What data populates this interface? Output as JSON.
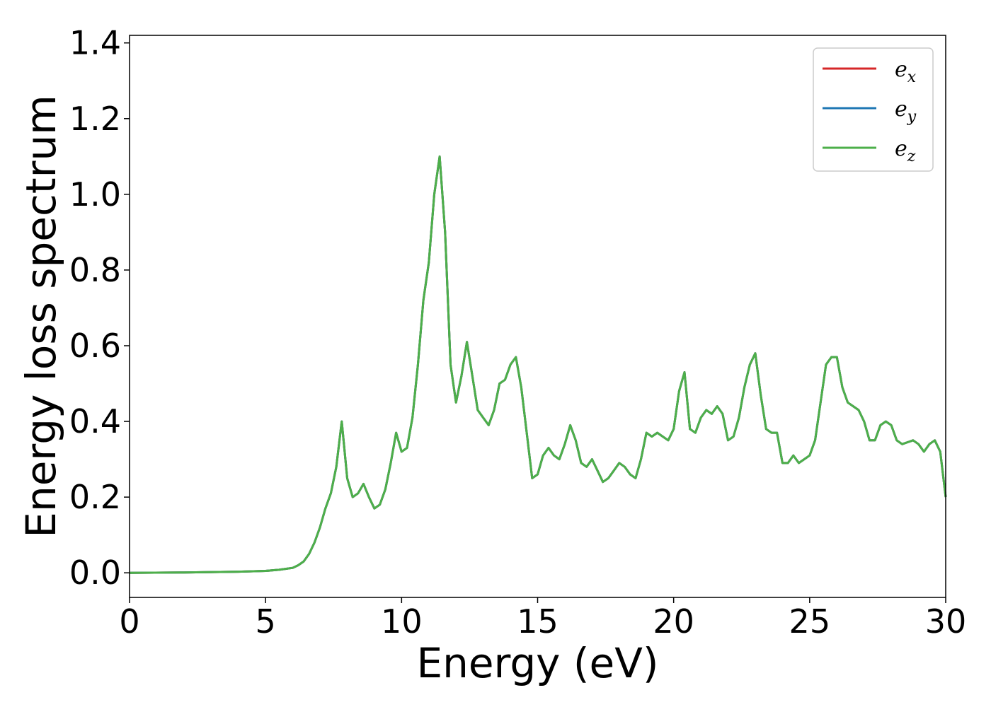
{
  "chart_data": {
    "type": "line",
    "title": "",
    "xlabel": "Energy (eV)",
    "ylabel": "Energy loss spectrum",
    "xlim": [
      0,
      30
    ],
    "ylim": [
      -0.065,
      1.42
    ],
    "xticks": [
      "0",
      "5",
      "10",
      "15",
      "20",
      "25",
      "30"
    ],
    "yticks": [
      "0.0",
      "0.2",
      "0.4",
      "0.6",
      "0.8",
      "1.0",
      "1.2",
      "1.4"
    ],
    "grid": false,
    "legend_position": "top-right",
    "series": [
      {
        "name": "e",
        "subscript": "x",
        "color": "#d62728"
      },
      {
        "name": "e",
        "subscript": "y",
        "color": "#1f77b4"
      },
      {
        "name": "e",
        "subscript": "z",
        "color": "#4daf4a"
      }
    ],
    "x": [
      0,
      2,
      4,
      5,
      5.5,
      6,
      6.2,
      6.4,
      6.6,
      6.8,
      7.0,
      7.2,
      7.4,
      7.6,
      7.8,
      8.0,
      8.2,
      8.4,
      8.6,
      8.8,
      9.0,
      9.2,
      9.4,
      9.6,
      9.8,
      10.0,
      10.2,
      10.4,
      10.6,
      10.8,
      11.0,
      11.2,
      11.4,
      11.6,
      11.8,
      12.0,
      12.2,
      12.4,
      12.6,
      12.8,
      13.0,
      13.2,
      13.4,
      13.6,
      13.8,
      14.0,
      14.2,
      14.4,
      14.6,
      14.8,
      15.0,
      15.2,
      15.4,
      15.6,
      15.8,
      16.0,
      16.2,
      16.4,
      16.6,
      16.8,
      17.0,
      17.2,
      17.4,
      17.6,
      17.8,
      18.0,
      18.2,
      18.4,
      18.6,
      18.8,
      19.0,
      19.2,
      19.4,
      19.6,
      19.8,
      20.0,
      20.2,
      20.4,
      20.6,
      20.8,
      21.0,
      21.2,
      21.4,
      21.6,
      21.8,
      22.0,
      22.2,
      22.4,
      22.6,
      22.8,
      23.0,
      23.2,
      23.4,
      23.6,
      23.8,
      24.0,
      24.2,
      24.4,
      24.6,
      24.8,
      25.0,
      25.2,
      25.4,
      25.6,
      25.8,
      26.0,
      26.2,
      26.4,
      26.6,
      26.8,
      27.0,
      27.2,
      27.4,
      27.6,
      27.8,
      28.0,
      28.2,
      28.4,
      28.6,
      28.8,
      29.0,
      29.2,
      29.4,
      29.6,
      29.8,
      30.0
    ],
    "y": [
      0.0,
      0.001,
      0.003,
      0.005,
      0.008,
      0.013,
      0.02,
      0.03,
      0.05,
      0.08,
      0.12,
      0.17,
      0.21,
      0.28,
      0.4,
      0.25,
      0.2,
      0.21,
      0.235,
      0.2,
      0.17,
      0.18,
      0.22,
      0.29,
      0.37,
      0.32,
      0.33,
      0.41,
      0.55,
      0.72,
      0.82,
      1.0,
      1.1,
      0.9,
      0.55,
      0.45,
      0.52,
      0.61,
      0.52,
      0.43,
      0.41,
      0.39,
      0.43,
      0.5,
      0.51,
      0.55,
      0.57,
      0.49,
      0.37,
      0.25,
      0.26,
      0.31,
      0.33,
      0.31,
      0.3,
      0.34,
      0.39,
      0.35,
      0.29,
      0.28,
      0.3,
      0.27,
      0.24,
      0.25,
      0.27,
      0.29,
      0.28,
      0.26,
      0.25,
      0.3,
      0.37,
      0.36,
      0.37,
      0.36,
      0.35,
      0.38,
      0.48,
      0.53,
      0.38,
      0.37,
      0.41,
      0.43,
      0.42,
      0.44,
      0.42,
      0.35,
      0.36,
      0.41,
      0.49,
      0.55,
      0.58,
      0.47,
      0.38,
      0.37,
      0.37,
      0.29,
      0.29,
      0.31,
      0.29,
      0.3,
      0.31,
      0.35,
      0.45,
      0.55,
      0.57,
      0.57,
      0.49,
      0.45,
      0.44,
      0.43,
      0.4,
      0.35,
      0.35,
      0.39,
      0.4,
      0.39,
      0.35,
      0.34,
      0.345,
      0.35,
      0.34,
      0.32,
      0.34,
      0.35,
      0.32,
      0.2
    ]
  }
}
